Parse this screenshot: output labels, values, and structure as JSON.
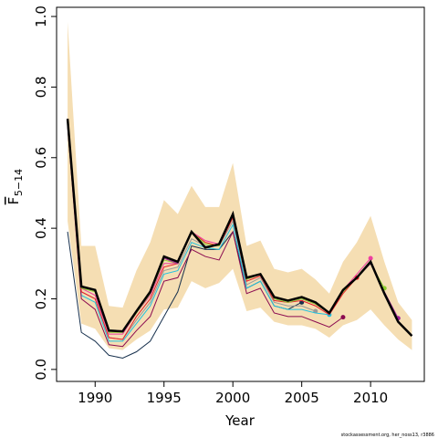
{
  "chart_data": {
    "type": "line",
    "xlabel": "Year",
    "ylabel": "F",
    "ylabel_subscript": "5−14",
    "credit": "stockassessment.org, her_noss13, r3886",
    "xlim": [
      1987.2,
      2013.9
    ],
    "ylim": [
      -0.034,
      1.026
    ],
    "xticks": [
      1990,
      1995,
      2000,
      2005,
      2010
    ],
    "yticks": [
      {
        "value": 0,
        "label": "0.0"
      },
      {
        "value": 0.2,
        "label": "0.2"
      },
      {
        "value": 0.4,
        "label": "0.4"
      },
      {
        "value": 0.6,
        "label": "0.6"
      },
      {
        "value": 0.8,
        "label": "0.8"
      },
      {
        "value": 1,
        "label": "1.0"
      }
    ],
    "x": [
      1988,
      1989,
      1990,
      1991,
      1992,
      1993,
      1994,
      1995,
      1996,
      1997,
      1998,
      1999,
      2000,
      2001,
      2002,
      2003,
      2004,
      2005,
      2006,
      2007,
      2008,
      2009,
      2010,
      2011,
      2012,
      2013
    ],
    "band": {
      "color": "#f5deb3",
      "upper": [
        0.985,
        0.35,
        0.35,
        0.18,
        0.175,
        0.28,
        0.36,
        0.48,
        0.44,
        0.52,
        0.46,
        0.46,
        0.585,
        0.35,
        0.365,
        0.285,
        0.275,
        0.285,
        0.255,
        0.215,
        0.305,
        0.36,
        0.435,
        0.305,
        0.19,
        0.14
      ],
      "lower": [
        0.42,
        0.13,
        0.115,
        0.06,
        0.055,
        0.085,
        0.11,
        0.17,
        0.175,
        0.25,
        0.23,
        0.245,
        0.285,
        0.165,
        0.175,
        0.135,
        0.125,
        0.125,
        0.115,
        0.09,
        0.125,
        0.14,
        0.17,
        0.125,
        0.085,
        0.055
      ]
    },
    "series": [
      {
        "color": "#17304d",
        "values": [
          0.39,
          0.105,
          0.08,
          0.04,
          0.032,
          0.05,
          0.08,
          0.15,
          0.22,
          0.35,
          0.34,
          0.34,
          0.39,
          0.23,
          0.25,
          0.18,
          0.17,
          0.19,
          null,
          null,
          null,
          null,
          null,
          null,
          null,
          null
        ]
      },
      {
        "color": "#999999",
        "values": [
          0.7,
          0.22,
          0.2,
          0.09,
          0.085,
          0.14,
          0.19,
          0.28,
          0.29,
          0.37,
          0.35,
          0.35,
          0.42,
          0.24,
          0.26,
          0.19,
          0.18,
          0.18,
          0.165,
          null,
          null,
          null,
          null,
          null,
          null,
          null
        ]
      },
      {
        "color": "#22c3e0",
        "values": [
          0.7,
          0.21,
          0.19,
          0.08,
          0.08,
          0.13,
          0.18,
          0.27,
          0.28,
          0.36,
          0.345,
          0.34,
          0.41,
          0.23,
          0.25,
          0.18,
          0.17,
          0.17,
          0.16,
          0.155,
          null,
          null,
          null,
          null,
          null,
          null
        ]
      },
      {
        "color": "#8b0a50",
        "values": [
          0.69,
          0.2,
          0.17,
          0.07,
          0.065,
          0.11,
          0.15,
          0.25,
          0.26,
          0.34,
          0.32,
          0.31,
          0.39,
          0.215,
          0.23,
          0.16,
          0.15,
          0.15,
          0.135,
          0.12,
          0.148,
          null,
          null,
          null,
          null,
          null
        ]
      },
      {
        "color": "#e8202a",
        "values": [
          0.71,
          0.22,
          0.2,
          0.09,
          0.085,
          0.15,
          0.2,
          0.29,
          0.3,
          0.39,
          0.36,
          0.35,
          0.43,
          0.25,
          0.265,
          0.195,
          0.19,
          0.195,
          0.18,
          0.155,
          0.215,
          0.26,
          null,
          null,
          null,
          null
        ]
      },
      {
        "color": "#ee3fa0",
        "values": [
          0.71,
          0.23,
          0.21,
          0.1,
          0.1,
          0.16,
          0.21,
          0.3,
          0.3,
          0.39,
          0.365,
          0.355,
          0.44,
          0.255,
          0.27,
          0.2,
          0.19,
          0.2,
          0.185,
          0.16,
          0.225,
          0.27,
          0.315,
          null,
          null,
          null
        ]
      },
      {
        "color": "#8ecf2f",
        "values": [
          0.71,
          0.23,
          0.22,
          0.105,
          0.105,
          0.16,
          0.215,
          0.31,
          0.3,
          0.39,
          0.355,
          0.35,
          0.44,
          0.255,
          0.27,
          0.2,
          0.19,
          0.2,
          0.185,
          0.16,
          0.22,
          0.26,
          0.3,
          0.23,
          null,
          null
        ]
      },
      {
        "color": "#a0209a",
        "values": [
          0.71,
          0.235,
          0.225,
          0.11,
          0.108,
          0.165,
          0.22,
          0.315,
          0.3,
          0.39,
          0.345,
          0.355,
          0.44,
          0.26,
          0.27,
          0.205,
          0.195,
          0.205,
          0.19,
          0.16,
          0.225,
          0.26,
          0.3,
          0.22,
          0.145,
          null
        ]
      },
      {
        "color": "#000000",
        "final": true,
        "values": [
          0.71,
          0.235,
          0.225,
          0.11,
          0.108,
          0.165,
          0.22,
          0.32,
          0.305,
          0.39,
          0.345,
          0.355,
          0.44,
          0.26,
          0.27,
          0.205,
          0.195,
          0.205,
          0.19,
          0.16,
          0.225,
          0.26,
          0.305,
          0.215,
          0.135,
          0.095
        ]
      }
    ]
  }
}
